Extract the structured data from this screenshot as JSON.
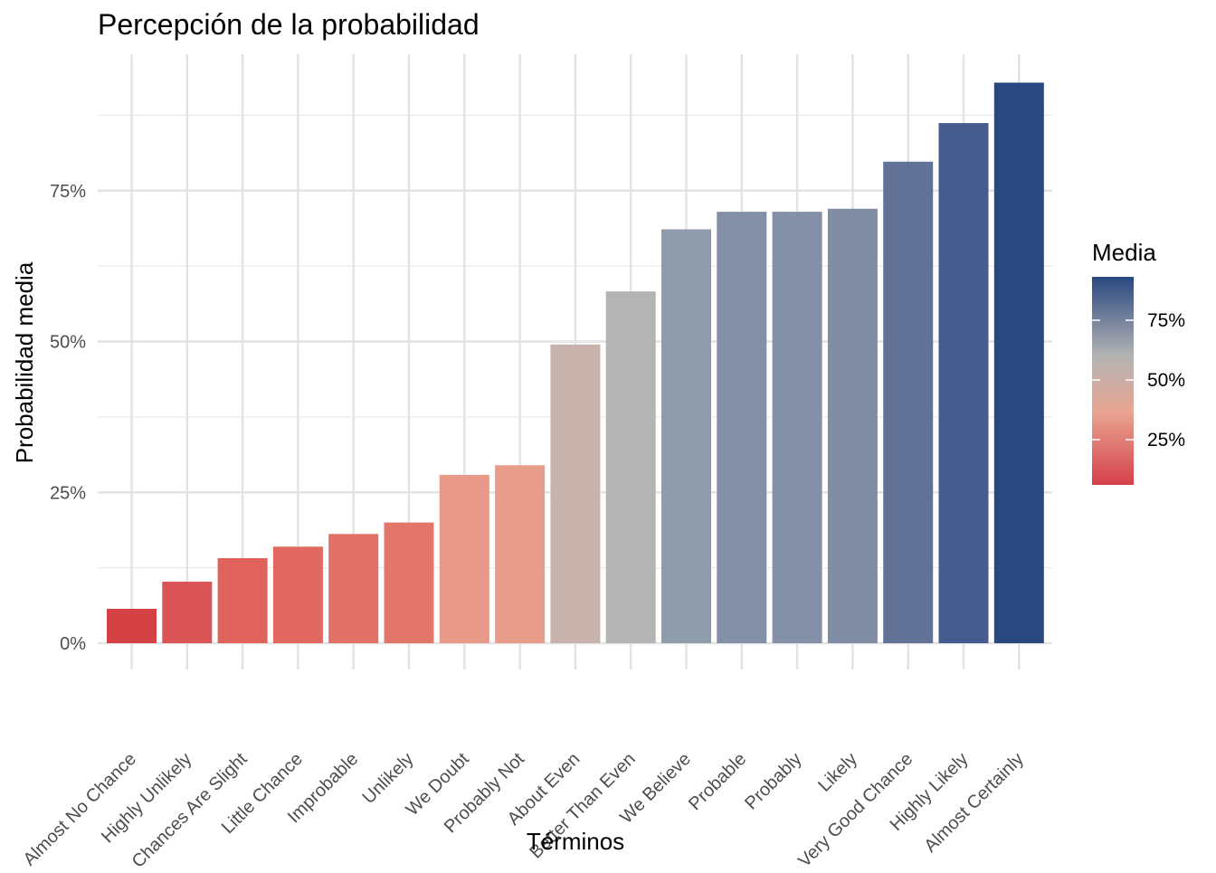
{
  "chart_data": {
    "type": "bar",
    "title": "Percepción de la probabilidad",
    "xlabel": "Términos",
    "ylabel": "Probabilidad media",
    "categories": [
      "Almost No Chance",
      "Highly Unlikely",
      "Chances Are Slight",
      "Little Chance",
      "Improbable",
      "Unlikely",
      "We Doubt",
      "Probably Not",
      "About Even",
      "Better Than Even",
      "We Believe",
      "Probable",
      "Probably",
      "Likely",
      "Very Good Chance",
      "Highly Likely",
      "Almost Certainly"
    ],
    "values": [
      5.7,
      10.2,
      14.1,
      16.0,
      18.1,
      20.0,
      27.9,
      29.5,
      49.5,
      58.3,
      68.6,
      71.5,
      71.5,
      72.0,
      79.8,
      86.2,
      92.9
    ],
    "y_ticks": [
      "0%",
      "25%",
      "50%",
      "75%"
    ],
    "ylim": [
      0,
      95
    ],
    "grid": true,
    "legend": {
      "title": "Media",
      "position": "right",
      "labels": [
        "75%",
        "50%",
        "25%"
      ],
      "colors": [
        "#d6404a",
        "#e8a592",
        "#b3b3b3",
        "#2a4880"
      ]
    },
    "bar_colors": [
      "#d54245",
      "#da5355",
      "#df625d",
      "#e16961",
      "#e27067",
      "#e2766b",
      "#e89987",
      "#e89d8b",
      "#c7b3ab",
      "#b4b4b4",
      "#8f9cab",
      "#8390a7",
      "#8390a7",
      "#818da5",
      "#627297",
      "#465c8e",
      "#2a4880"
    ]
  }
}
